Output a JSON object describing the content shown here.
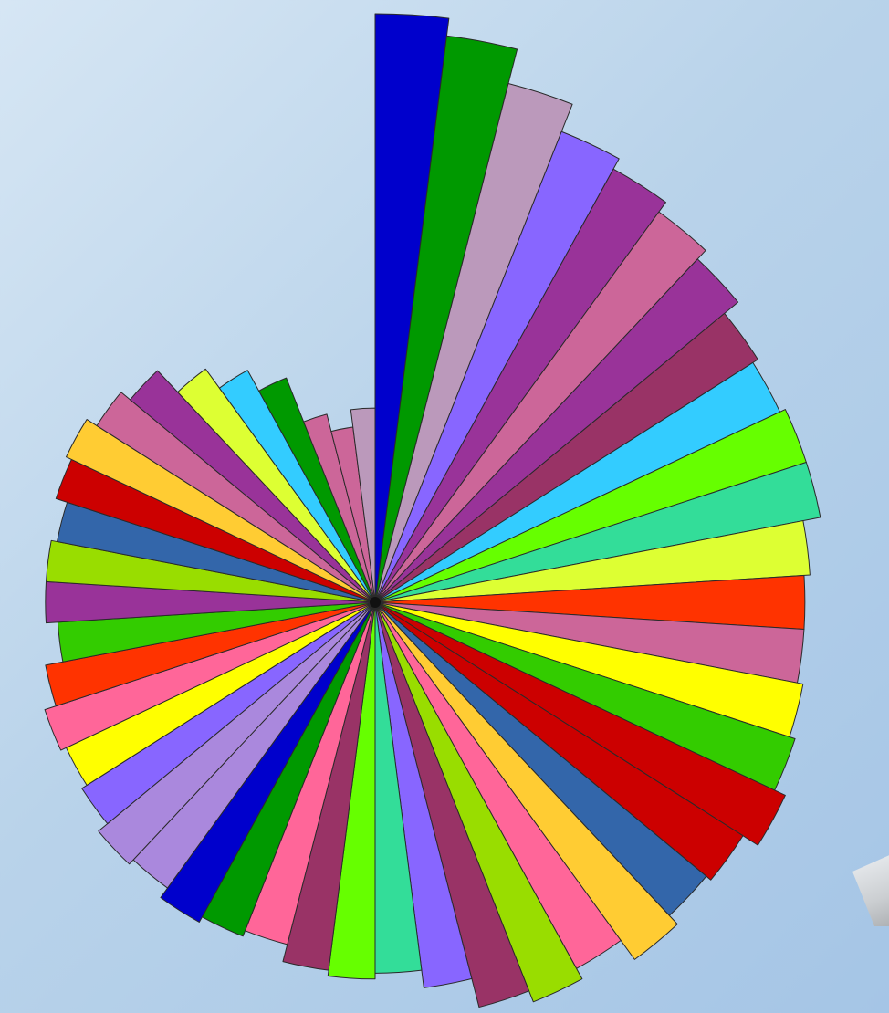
{
  "chart_data": {
    "type": "polar-area",
    "values": [
      100,
      97,
      91,
      86,
      84,
      82,
      80,
      77,
      76,
      77,
      77,
      74,
      73,
      73,
      74,
      75,
      77,
      74,
      73,
      75,
      71,
      73,
      71,
      66,
      63,
      64,
      63,
      60,
      61,
      62,
      60,
      61,
      59,
      58,
      59,
      57,
      54,
      56,
      56,
      55,
      57,
      58,
      56,
      54,
      49,
      45,
      41,
      33,
      30,
      33
    ],
    "colors": [
      "#0000cc",
      "#009900",
      "#bb99bb",
      "#8866ff",
      "#993399",
      "#cc6699",
      "#993399",
      "#993366",
      "#33ccff",
      "#66ff00",
      "#33dd99",
      "#ddff33",
      "#ff3300",
      "#cc6699",
      "#ffff00",
      "#33cc00",
      "#cc0000",
      "#cc0000",
      "#3366aa",
      "#ffcc33",
      "#ff6699",
      "#99dd00",
      "#993366",
      "#8866ff",
      "#33dd99",
      "#66ff00",
      "#993366",
      "#ff6699",
      "#009900",
      "#0000cc",
      "#aa88dd",
      "#aa88dd",
      "#8866ff",
      "#ffff00",
      "#ff6699",
      "#ff3300",
      "#33cc00",
      "#993399",
      "#99dd00",
      "#3366aa",
      "#cc0000",
      "#ffcc33",
      "#cc6699",
      "#993399",
      "#ddff33",
      "#33ccff",
      "#009900",
      "#cc6699",
      "#cc6699",
      "#bb99bb"
    ],
    "title": "",
    "legend": "none",
    "grid": false
  }
}
